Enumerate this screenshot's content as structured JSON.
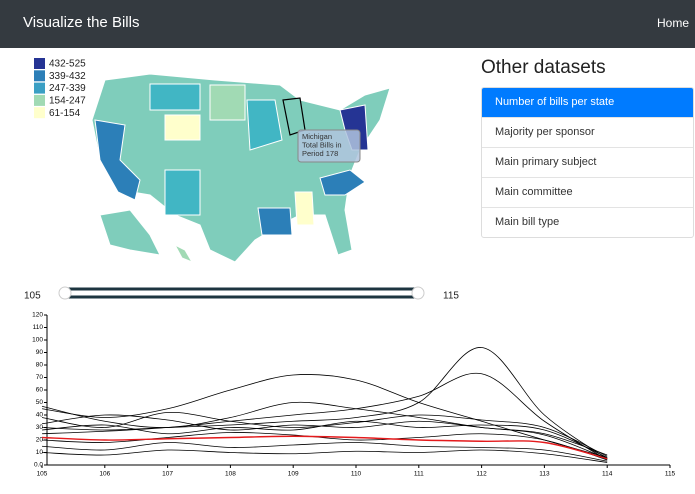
{
  "navbar": {
    "title": "Visualize the Bills",
    "home": "Home"
  },
  "map": {
    "legend": [
      {
        "label": "432-525",
        "color": "#253494"
      },
      {
        "label": "339-432",
        "color": "#2c7fb8"
      },
      {
        "label": "247-339",
        "color": "#3a9fc4"
      },
      {
        "label": "154-247",
        "color": "#a1dab4"
      },
      {
        "label": "61-154",
        "color": "#ffffcc"
      }
    ],
    "tooltip": [
      "Michigan",
      "Total Bills in",
      "Period 178"
    ]
  },
  "sidebar": {
    "title": "Other datasets",
    "items": [
      "Number of bills per state",
      "Majority per sponsor",
      "Main primary subject",
      "Main committee",
      "Main bill type"
    ],
    "active": 0
  },
  "slider": {
    "min": 105,
    "max": 115
  },
  "chart_data": {
    "type": "line",
    "x": [
      105,
      106,
      107,
      108,
      109,
      110,
      111,
      112,
      113,
      114
    ],
    "xlim": [
      105,
      115
    ],
    "xticks": [
      105,
      106,
      107,
      108,
      109,
      110,
      111,
      112,
      113,
      114,
      115
    ],
    "ylim": [
      0,
      120
    ],
    "yticks": [
      {
        "value": 0,
        "label": "0.0"
      },
      10,
      20,
      30,
      40,
      50,
      60,
      70,
      80,
      90,
      100,
      110,
      120
    ],
    "series": [
      {
        "color": "#000000",
        "values": [
          30,
          28,
          30,
          32,
          35,
          38,
          50,
          94,
          40,
          5
        ]
      },
      {
        "color": "#000000",
        "values": [
          25,
          27,
          30,
          35,
          40,
          45,
          55,
          73,
          35,
          4
        ]
      },
      {
        "color": "#000000",
        "values": [
          45,
          38,
          45,
          60,
          72,
          68,
          50,
          35,
          20,
          6
        ]
      },
      {
        "color": "#000000",
        "values": [
          47,
          35,
          30,
          38,
          50,
          45,
          38,
          30,
          25,
          8
        ]
      },
      {
        "color": "#000000",
        "values": [
          38,
          30,
          42,
          35,
          30,
          34,
          40,
          36,
          30,
          7
        ]
      },
      {
        "color": "#000000",
        "values": [
          28,
          32,
          25,
          30,
          28,
          35,
          30,
          32,
          28,
          6
        ]
      },
      {
        "color": "#000000",
        "values": [
          20,
          18,
          22,
          26,
          24,
          20,
          22,
          25,
          20,
          4
        ]
      },
      {
        "color": "#000000",
        "values": [
          15,
          12,
          18,
          14,
          16,
          18,
          15,
          14,
          12,
          3
        ]
      },
      {
        "color": "#000000",
        "values": [
          10,
          8,
          12,
          10,
          9,
          11,
          10,
          12,
          9,
          2
        ]
      },
      {
        "color": "#000000",
        "values": [
          33,
          40,
          36,
          28,
          32,
          30,
          35,
          30,
          24,
          5
        ]
      },
      {
        "color": "#e41a1c",
        "values": [
          22,
          20,
          21,
          22,
          23,
          22,
          20,
          19,
          18,
          5
        ]
      }
    ]
  }
}
